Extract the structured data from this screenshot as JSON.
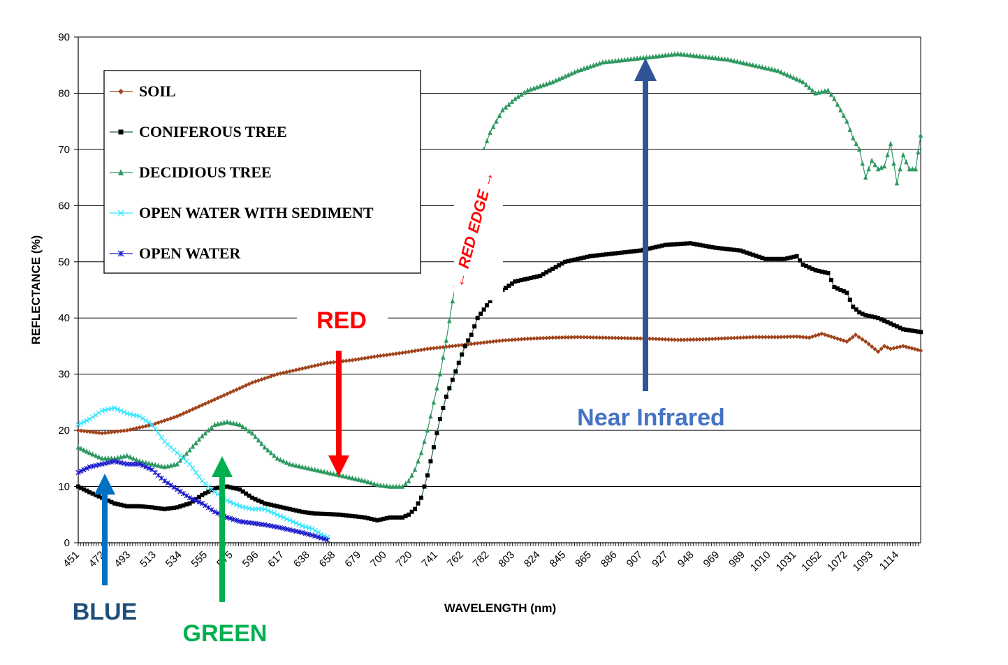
{
  "chart_data": {
    "type": "line",
    "title": "",
    "xlabel": "WAVELENGTH (nm)",
    "ylabel": "REFLECTANCE (%)",
    "xlim": [
      451,
      1124
    ],
    "ylim": [
      0,
      90
    ],
    "yticks": [
      0,
      10,
      20,
      30,
      40,
      50,
      60,
      70,
      80,
      90
    ],
    "xtick_labels": [
      "451",
      "472",
      "493",
      "513",
      "534",
      "555",
      "575",
      "596",
      "617",
      "638",
      "658",
      "679",
      "700",
      "720",
      "741",
      "762",
      "782",
      "803",
      "824",
      "845",
      "865",
      "886",
      "907",
      "927",
      "948",
      "969",
      "989",
      "1010",
      "1031",
      "1052",
      "1072",
      "1093",
      "1114"
    ],
    "grid": "horizontal",
    "legend_position": "top-left",
    "series": [
      {
        "name": "SOIL",
        "color": "#a0441c",
        "marker": "diamond",
        "points": [
          [
            451,
            20
          ],
          [
            470,
            19.5
          ],
          [
            490,
            20
          ],
          [
            510,
            21
          ],
          [
            530,
            22.5
          ],
          [
            550,
            24.5
          ],
          [
            570,
            26.5
          ],
          [
            590,
            28.5
          ],
          [
            610,
            30
          ],
          [
            630,
            31
          ],
          [
            650,
            32
          ],
          [
            670,
            32.5
          ],
          [
            690,
            33.2
          ],
          [
            710,
            33.8
          ],
          [
            730,
            34.5
          ],
          [
            750,
            35
          ],
          [
            770,
            35.5
          ],
          [
            790,
            36
          ],
          [
            810,
            36.3
          ],
          [
            830,
            36.5
          ],
          [
            850,
            36.6
          ],
          [
            870,
            36.5
          ],
          [
            890,
            36.4
          ],
          [
            910,
            36.3
          ],
          [
            930,
            36.1
          ],
          [
            950,
            36.2
          ],
          [
            970,
            36.4
          ],
          [
            990,
            36.6
          ],
          [
            1010,
            36.6
          ],
          [
            1025,
            36.7
          ],
          [
            1035,
            36.5
          ],
          [
            1045,
            37.2
          ],
          [
            1055,
            36.5
          ],
          [
            1065,
            35.8
          ],
          [
            1072,
            37
          ],
          [
            1080,
            35.8
          ],
          [
            1090,
            34
          ],
          [
            1095,
            35
          ],
          [
            1100,
            34.5
          ],
          [
            1110,
            35
          ],
          [
            1124,
            34.2
          ]
        ]
      },
      {
        "name": "CONIFEROUS TREE",
        "color": "#000000",
        "line_color": "#1f5f3a",
        "marker": "square",
        "points": [
          [
            451,
            10
          ],
          [
            460,
            9
          ],
          [
            470,
            8
          ],
          [
            480,
            7
          ],
          [
            490,
            6.5
          ],
          [
            500,
            6.5
          ],
          [
            510,
            6.3
          ],
          [
            520,
            6
          ],
          [
            530,
            6.3
          ],
          [
            540,
            7
          ],
          [
            550,
            8.5
          ],
          [
            560,
            9.7
          ],
          [
            570,
            10
          ],
          [
            580,
            9.5
          ],
          [
            590,
            8
          ],
          [
            600,
            7
          ],
          [
            610,
            6.5
          ],
          [
            620,
            6
          ],
          [
            630,
            5.5
          ],
          [
            640,
            5.2
          ],
          [
            660,
            5
          ],
          [
            680,
            4.5
          ],
          [
            690,
            4
          ],
          [
            700,
            4.5
          ],
          [
            710,
            4.5
          ],
          [
            715,
            5
          ],
          [
            720,
            6
          ],
          [
            725,
            8
          ],
          [
            730,
            12
          ],
          [
            735,
            17
          ],
          [
            740,
            22
          ],
          [
            745,
            26
          ],
          [
            750,
            29
          ],
          [
            755,
            32
          ],
          [
            760,
            35
          ],
          [
            765,
            37
          ],
          [
            770,
            40
          ],
          [
            780,
            43
          ],
          [
            790,
            45
          ],
          [
            800,
            46.5
          ],
          [
            820,
            47.5
          ],
          [
            840,
            50
          ],
          [
            860,
            51
          ],
          [
            880,
            51.5
          ],
          [
            900,
            52
          ],
          [
            920,
            53
          ],
          [
            940,
            53.3
          ],
          [
            960,
            52.5
          ],
          [
            980,
            52
          ],
          [
            1000,
            50.5
          ],
          [
            1015,
            50.5
          ],
          [
            1025,
            51
          ],
          [
            1030,
            49.5
          ],
          [
            1040,
            48.5
          ],
          [
            1050,
            48
          ],
          [
            1055,
            45.5
          ],
          [
            1065,
            44.5
          ],
          [
            1070,
            42
          ],
          [
            1075,
            41
          ],
          [
            1080,
            40.5
          ],
          [
            1090,
            40
          ],
          [
            1100,
            39
          ],
          [
            1110,
            38
          ],
          [
            1124,
            37.5
          ]
        ]
      },
      {
        "name": "DECIDIOUS TREE",
        "color": "#2e9960",
        "marker": "triangle",
        "points": [
          [
            451,
            17
          ],
          [
            460,
            16
          ],
          [
            470,
            15
          ],
          [
            480,
            15
          ],
          [
            490,
            15.5
          ],
          [
            500,
            14.5
          ],
          [
            510,
            14
          ],
          [
            520,
            13.5
          ],
          [
            530,
            14
          ],
          [
            540,
            16.5
          ],
          [
            550,
            19
          ],
          [
            560,
            21
          ],
          [
            570,
            21.5
          ],
          [
            580,
            21
          ],
          [
            590,
            19.5
          ],
          [
            600,
            17
          ],
          [
            610,
            15
          ],
          [
            620,
            14
          ],
          [
            630,
            13.5
          ],
          [
            640,
            13
          ],
          [
            650,
            12.5
          ],
          [
            660,
            12
          ],
          [
            670,
            11.5
          ],
          [
            680,
            11
          ],
          [
            690,
            10.3
          ],
          [
            700,
            10
          ],
          [
            710,
            10
          ],
          [
            715,
            11
          ],
          [
            720,
            13
          ],
          [
            725,
            16
          ],
          [
            730,
            20
          ],
          [
            735,
            25
          ],
          [
            740,
            30
          ],
          [
            745,
            36
          ],
          [
            750,
            43
          ],
          [
            755,
            49
          ],
          [
            760,
            55
          ],
          [
            765,
            60
          ],
          [
            770,
            66
          ],
          [
            775,
            70
          ],
          [
            780,
            73
          ],
          [
            790,
            77
          ],
          [
            800,
            79
          ],
          [
            810,
            80.5
          ],
          [
            830,
            82
          ],
          [
            850,
            84
          ],
          [
            870,
            85.5
          ],
          [
            890,
            86
          ],
          [
            910,
            86.5
          ],
          [
            930,
            87
          ],
          [
            950,
            86.5
          ],
          [
            970,
            86
          ],
          [
            990,
            85
          ],
          [
            1010,
            84
          ],
          [
            1020,
            83
          ],
          [
            1030,
            82
          ],
          [
            1040,
            80
          ],
          [
            1050,
            80.5
          ],
          [
            1055,
            79
          ],
          [
            1060,
            77
          ],
          [
            1065,
            75
          ],
          [
            1070,
            72
          ],
          [
            1075,
            70
          ],
          [
            1080,
            65
          ],
          [
            1085,
            68
          ],
          [
            1090,
            66.5
          ],
          [
            1095,
            67
          ],
          [
            1100,
            71
          ],
          [
            1105,
            64
          ],
          [
            1110,
            69
          ],
          [
            1115,
            66.5
          ],
          [
            1120,
            66.5
          ],
          [
            1124,
            72.5
          ]
        ]
      },
      {
        "name": "OPEN WATER WITH SEDIMENT",
        "color": "#33e6ff",
        "marker": "x",
        "points": [
          [
            451,
            21
          ],
          [
            460,
            22
          ],
          [
            470,
            23.5
          ],
          [
            480,
            24
          ],
          [
            490,
            23
          ],
          [
            500,
            22.5
          ],
          [
            510,
            21
          ],
          [
            520,
            18
          ],
          [
            530,
            16
          ],
          [
            540,
            14
          ],
          [
            550,
            11
          ],
          [
            560,
            9
          ],
          [
            570,
            7.5
          ],
          [
            580,
            6.5
          ],
          [
            590,
            6
          ],
          [
            600,
            6
          ],
          [
            610,
            5
          ],
          [
            620,
            4
          ],
          [
            630,
            3
          ],
          [
            638,
            2.5
          ],
          [
            645,
            1.5
          ],
          [
            650,
            1
          ]
        ]
      },
      {
        "name": "OPEN WATER",
        "color": "#1a1acc",
        "marker": "star",
        "points": [
          [
            451,
            12.5
          ],
          [
            460,
            13.5
          ],
          [
            470,
            14
          ],
          [
            480,
            14.5
          ],
          [
            490,
            14
          ],
          [
            500,
            14
          ],
          [
            510,
            13
          ],
          [
            520,
            11
          ],
          [
            530,
            9.5
          ],
          [
            540,
            8
          ],
          [
            550,
            7
          ],
          [
            560,
            5.5
          ],
          [
            570,
            4.5
          ],
          [
            580,
            3.8
          ],
          [
            590,
            3.5
          ],
          [
            600,
            3.2
          ],
          [
            610,
            2.8
          ],
          [
            620,
            2.3
          ],
          [
            630,
            1.8
          ],
          [
            640,
            1.2
          ],
          [
            650,
            0.5
          ]
        ]
      }
    ],
    "annotations": [
      {
        "text": "RED",
        "color": "#ff0000",
        "x": 658,
        "y": 12
      },
      {
        "text": "BLUE",
        "color": "#1f4e79",
        "x": 472,
        "y": 13
      },
      {
        "text": "GREEN",
        "color": "#00b050",
        "x": 565,
        "y": 15
      },
      {
        "text": "Near Infrared",
        "color": "#4472c4",
        "x": 907,
        "y": 86
      },
      {
        "text": "← RED EDGE →",
        "color": "#ff0000"
      }
    ]
  }
}
